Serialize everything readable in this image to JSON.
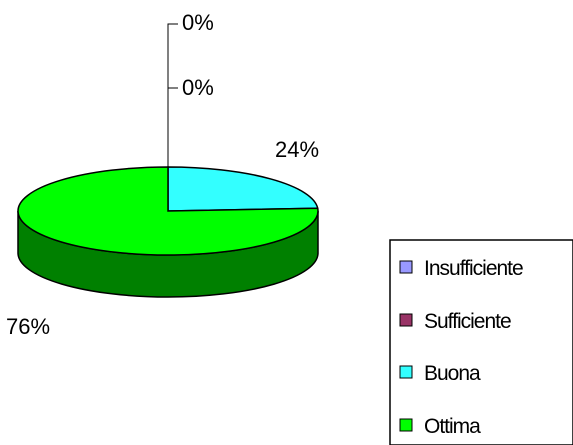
{
  "chart_data": {
    "type": "pie",
    "three_d": true,
    "categories": [
      "Insufficiente",
      "Sufficiente",
      "Buona",
      "Ottima"
    ],
    "values": [
      0,
      0,
      24,
      76
    ],
    "labels": [
      "0%",
      "0%",
      "24%",
      "76%"
    ],
    "colors": {
      "Insufficiente": "#9999FF",
      "Sufficiente": "#993366",
      "Buona": "#33FFFF",
      "Ottima": "#00FF00",
      "Ottima_side": "#008000",
      "outline": "#000000"
    },
    "legend": "right"
  }
}
